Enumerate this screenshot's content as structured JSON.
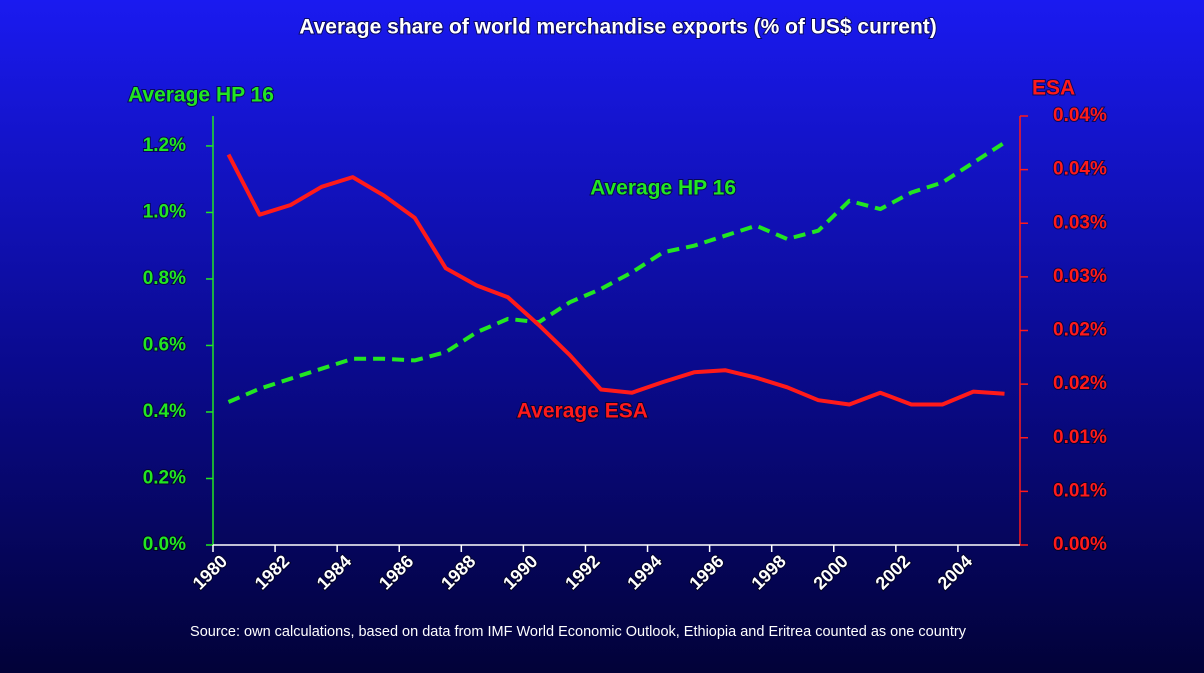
{
  "chart_data": {
    "type": "line",
    "title": "Average share of world merchandise exports (% of US$ current)",
    "y_label": "Average HP 16",
    "y2_label": "ESA",
    "source": "Source: own calculations, based on data from IMF World Economic Outlook, Ethiopia and Eritrea counted as one country",
    "annotations": [
      {
        "text": "Average HP 16",
        "x": 1994.5,
        "y": 1.07,
        "axis": "y"
      },
      {
        "text": "Average ESA",
        "x": 1991.9,
        "y": 0.0124,
        "axis": "y2"
      }
    ],
    "x": [
      1980.5,
      1981.5,
      1982.5,
      1983.5,
      1984.5,
      1985.5,
      1986.5,
      1987.5,
      1988.5,
      1989.5,
      1990.5,
      1991.5,
      1992.5,
      1993.5,
      1994.5,
      1995.5,
      1996.5,
      1997.5,
      1998.5,
      1999.5,
      2000.5,
      2001.5,
      2002.5,
      2003.5,
      2004.5,
      2005.5
    ],
    "xlim": [
      1980,
      2006
    ],
    "xticks": [
      1980,
      1982,
      1984,
      1986,
      1988,
      1990,
      1992,
      1994,
      1996,
      1998,
      2000,
      2002,
      2004
    ],
    "ylim": [
      0,
      1.29
    ],
    "yticks": [
      {
        "value": 0,
        "label": "0.0%"
      },
      {
        "value": 0.2,
        "label": "0.2%"
      },
      {
        "value": 0.4,
        "label": "0.4%"
      },
      {
        "value": 0.6,
        "label": "0.6%"
      },
      {
        "value": 0.8,
        "label": "0.8%"
      },
      {
        "value": 1.0,
        "label": "1.0%"
      },
      {
        "value": 1.2,
        "label": "1.2%"
      }
    ],
    "y2lim": [
      0,
      0.04
    ],
    "y2ticks": [
      {
        "value": 0,
        "label": "0.00%"
      },
      {
        "value": 0.005,
        "label": "0.01%"
      },
      {
        "value": 0.01,
        "label": "0.01%"
      },
      {
        "value": 0.015,
        "label": "0.02%"
      },
      {
        "value": 0.02,
        "label": "0.02%"
      },
      {
        "value": 0.025,
        "label": "0.03%"
      },
      {
        "value": 0.03,
        "label": "0.03%"
      },
      {
        "value": 0.035,
        "label": "0.04%"
      },
      {
        "value": 0.04,
        "label": "0.04%"
      }
    ],
    "y_color": "#22e622",
    "y2_color": "#ff1a1a",
    "series": [
      {
        "name": "Average HP 16",
        "color": "#22e622",
        "dash": true,
        "axis": "y",
        "values": [
          0.43,
          0.47,
          0.5,
          0.53,
          0.56,
          0.56,
          0.555,
          0.58,
          0.64,
          0.68,
          0.67,
          0.73,
          0.77,
          0.82,
          0.88,
          0.9,
          0.93,
          0.96,
          0.92,
          0.945,
          1.035,
          1.01,
          1.06,
          1.09,
          1.15,
          1.21
        ]
      },
      {
        "name": "Average ESA",
        "color": "#ff1a1a",
        "dash": false,
        "axis": "y2",
        "values": [
          0.0364,
          0.0308,
          0.0317,
          0.0334,
          0.0343,
          0.0326,
          0.0305,
          0.0258,
          0.0242,
          0.0231,
          0.0205,
          0.0177,
          0.0145,
          0.0142,
          0.0152,
          0.0161,
          0.0163,
          0.0156,
          0.0147,
          0.0135,
          0.0131,
          0.0142,
          0.0131,
          0.0131,
          0.0143,
          0.0141
        ]
      }
    ]
  }
}
